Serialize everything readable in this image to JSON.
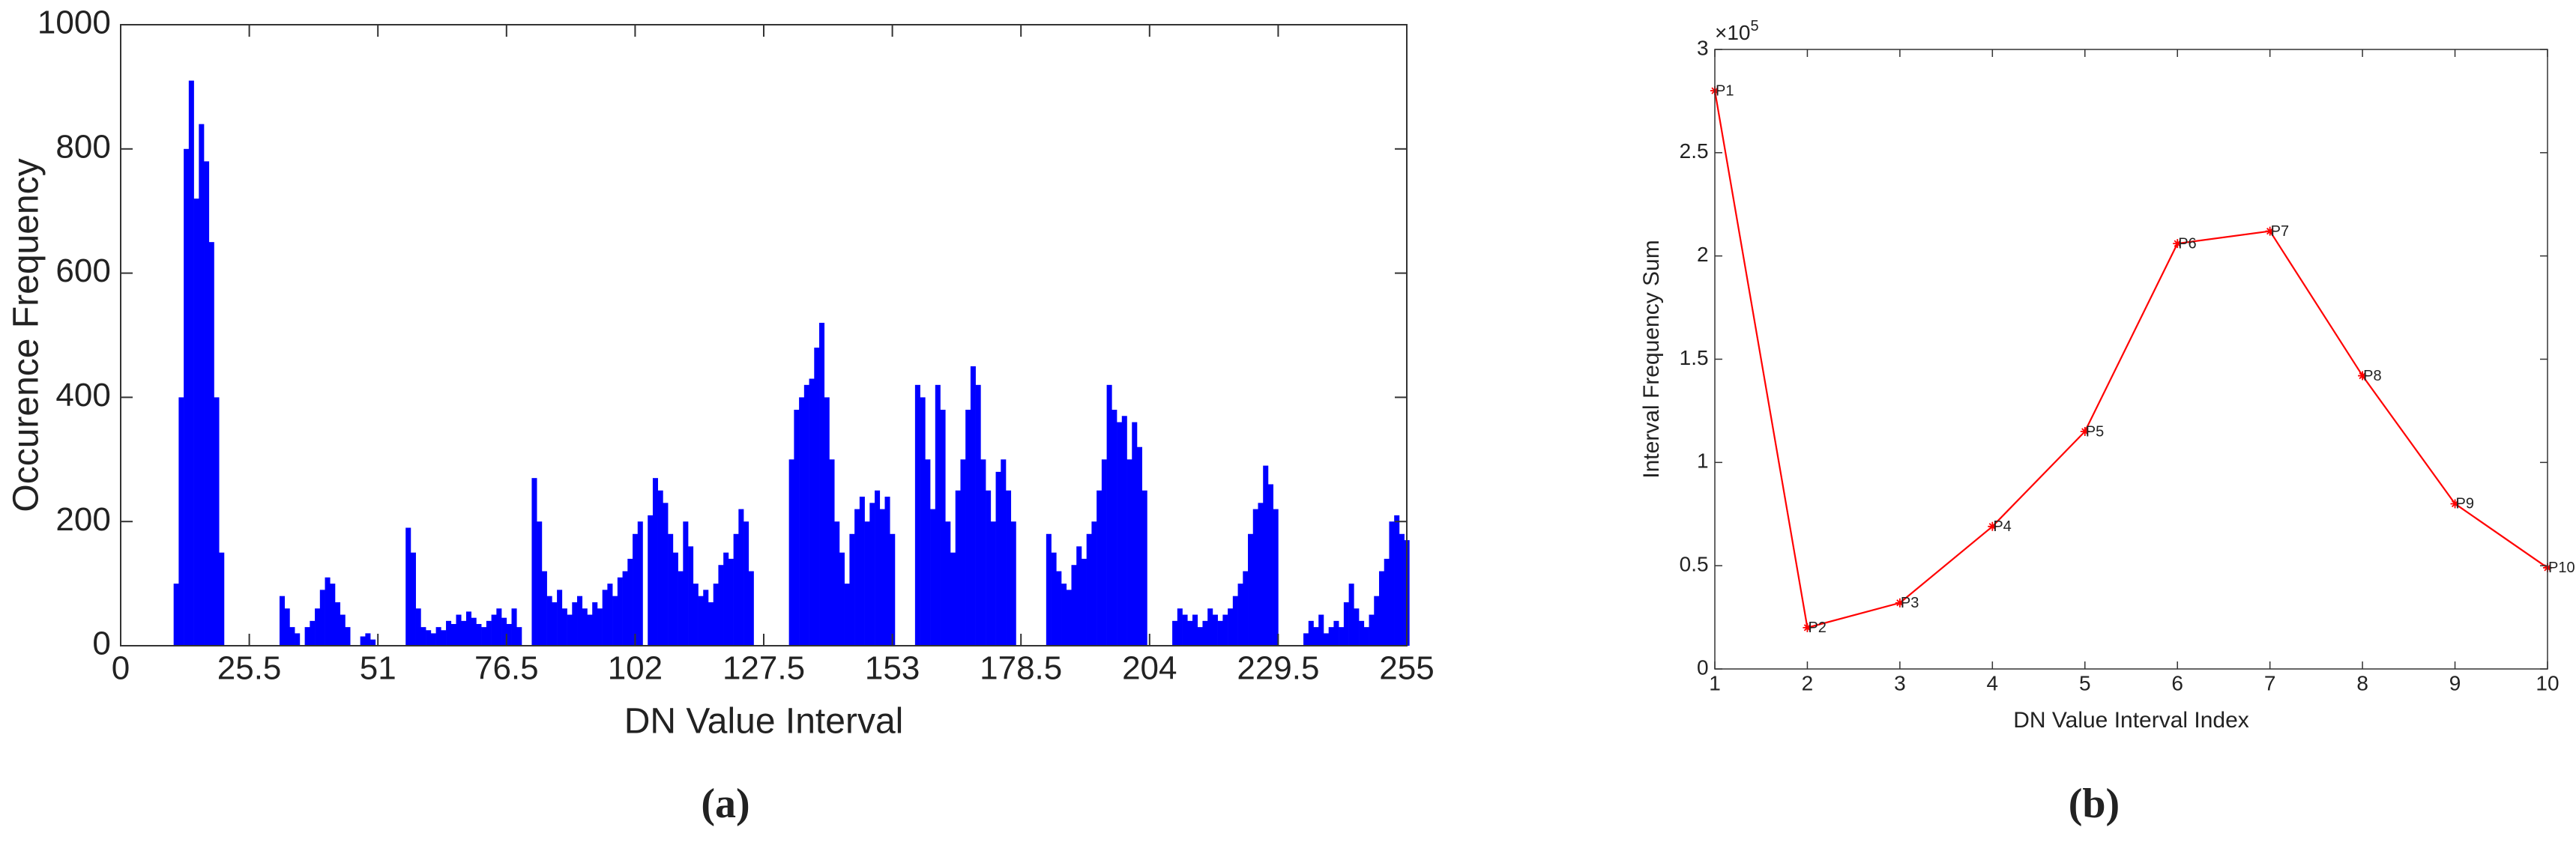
{
  "chart_data": [
    {
      "type": "bar",
      "color": "#0000ff",
      "xlabel": "DN Value Interval",
      "ylabel": "Occurence Frequency",
      "caption": "(a)",
      "xlim": [
        0,
        255
      ],
      "xticks": [
        0,
        25.5,
        51,
        76.5,
        102,
        127.5,
        153,
        178.5,
        204,
        229.5,
        255
      ],
      "ylim": [
        0,
        1000
      ],
      "yticks": [
        0,
        200,
        400,
        600,
        800,
        1000
      ],
      "x": [
        0,
        1,
        2,
        3,
        4,
        5,
        6,
        7,
        8,
        9,
        10,
        11,
        12,
        13,
        14,
        15,
        16,
        17,
        18,
        19,
        20,
        21,
        22,
        23,
        24,
        25,
        26,
        27,
        28,
        29,
        30,
        31,
        32,
        33,
        34,
        35,
        36,
        37,
        38,
        39,
        40,
        41,
        42,
        43,
        44,
        45,
        46,
        47,
        48,
        49,
        50,
        51,
        52,
        53,
        54,
        55,
        56,
        57,
        58,
        59,
        60,
        61,
        62,
        63,
        64,
        65,
        66,
        67,
        68,
        69,
        70,
        71,
        72,
        73,
        74,
        75,
        76,
        77,
        78,
        79,
        80,
        81,
        82,
        83,
        84,
        85,
        86,
        87,
        88,
        89,
        90,
        91,
        92,
        93,
        94,
        95,
        96,
        97,
        98,
        99,
        100,
        101,
        102,
        103,
        104,
        105,
        106,
        107,
        108,
        109,
        110,
        111,
        112,
        113,
        114,
        115,
        116,
        117,
        118,
        119,
        120,
        121,
        122,
        123,
        124,
        125,
        126,
        127,
        128,
        129,
        130,
        131,
        132,
        133,
        134,
        135,
        136,
        137,
        138,
        139,
        140,
        141,
        142,
        143,
        144,
        145,
        146,
        147,
        148,
        149,
        150,
        151,
        152,
        153,
        154,
        155,
        156,
        157,
        158,
        159,
        160,
        161,
        162,
        163,
        164,
        165,
        166,
        167,
        168,
        169,
        170,
        171,
        172,
        173,
        174,
        175,
        176,
        177,
        178,
        179,
        180,
        181,
        182,
        183,
        184,
        185,
        186,
        187,
        188,
        189,
        190,
        191,
        192,
        193,
        194,
        195,
        196,
        197,
        198,
        199,
        200,
        201,
        202,
        203,
        204,
        205,
        206,
        207,
        208,
        209,
        210,
        211,
        212,
        213,
        214,
        215,
        216,
        217,
        218,
        219,
        220,
        221,
        222,
        223,
        224,
        225,
        226,
        227,
        228,
        229,
        230,
        231,
        232,
        233,
        234,
        235,
        236,
        237,
        238,
        239,
        240,
        241,
        242,
        243,
        244,
        245,
        246,
        247,
        248,
        249,
        250,
        251,
        252,
        253,
        254,
        255
      ],
      "values": [
        0,
        0,
        0,
        0,
        0,
        0,
        0,
        0,
        0,
        0,
        0,
        100,
        400,
        800,
        910,
        720,
        840,
        780,
        650,
        400,
        150,
        0,
        0,
        0,
        0,
        0,
        0,
        0,
        0,
        0,
        0,
        0,
        80,
        60,
        30,
        20,
        0,
        30,
        40,
        60,
        90,
        110,
        100,
        70,
        50,
        30,
        0,
        0,
        15,
        20,
        10,
        0,
        0,
        0,
        0,
        0,
        0,
        190,
        150,
        60,
        30,
        25,
        20,
        30,
        25,
        40,
        35,
        50,
        40,
        55,
        45,
        35,
        30,
        40,
        50,
        60,
        45,
        35,
        60,
        30,
        0,
        0,
        270,
        200,
        120,
        80,
        70,
        90,
        60,
        50,
        70,
        80,
        60,
        50,
        70,
        60,
        90,
        100,
        80,
        110,
        120,
        140,
        180,
        200,
        0,
        210,
        270,
        250,
        230,
        180,
        150,
        120,
        200,
        160,
        100,
        80,
        90,
        70,
        100,
        130,
        150,
        140,
        180,
        220,
        200,
        120,
        0,
        0,
        0,
        0,
        0,
        0,
        0,
        300,
        380,
        400,
        420,
        430,
        480,
        520,
        400,
        300,
        200,
        150,
        100,
        180,
        220,
        240,
        200,
        230,
        250,
        220,
        240,
        180,
        0,
        0,
        0,
        0,
        420,
        400,
        300,
        220,
        420,
        380,
        200,
        150,
        250,
        300,
        380,
        450,
        420,
        300,
        250,
        200,
        280,
        300,
        250,
        200,
        0,
        0,
        0,
        0,
        0,
        0,
        180,
        150,
        120,
        100,
        90,
        130,
        160,
        140,
        180,
        200,
        250,
        300,
        420,
        380,
        360,
        370,
        300,
        360,
        320,
        250,
        0,
        0,
        0,
        0,
        0,
        40,
        60,
        50,
        40,
        50,
        30,
        40,
        60,
        50,
        40,
        50,
        60,
        80,
        100,
        120,
        180,
        220,
        230,
        290,
        260,
        220,
        0,
        0,
        0,
        0,
        0,
        20,
        40,
        30,
        50,
        20,
        30,
        40,
        30,
        70,
        100,
        60,
        40,
        30,
        50,
        80,
        120,
        140,
        200,
        210,
        180,
        170
      ]
    },
    {
      "type": "line",
      "color": "#ff0000",
      "xlabel": "DN Value Interval Index",
      "ylabel": "Interval Frequency Sum",
      "caption": "(b)",
      "y_multiplier": "×10",
      "y_multiplier_exponent": "5",
      "xlim": [
        1,
        10
      ],
      "xticks": [
        1,
        2,
        3,
        4,
        5,
        6,
        7,
        8,
        9,
        10
      ],
      "ylim": [
        0,
        3
      ],
      "yticks": [
        0,
        0.5,
        1,
        1.5,
        2,
        2.5,
        3
      ],
      "x": [
        1,
        2,
        3,
        4,
        5,
        6,
        7,
        8,
        9,
        10
      ],
      "values": [
        2.8,
        0.2,
        0.32,
        0.69,
        1.15,
        2.06,
        2.12,
        1.42,
        0.8,
        0.49
      ],
      "point_labels": [
        "P1",
        "P2",
        "P3",
        "P4",
        "P5",
        "P6",
        "P7",
        "P8",
        "P9",
        "P10"
      ]
    }
  ]
}
